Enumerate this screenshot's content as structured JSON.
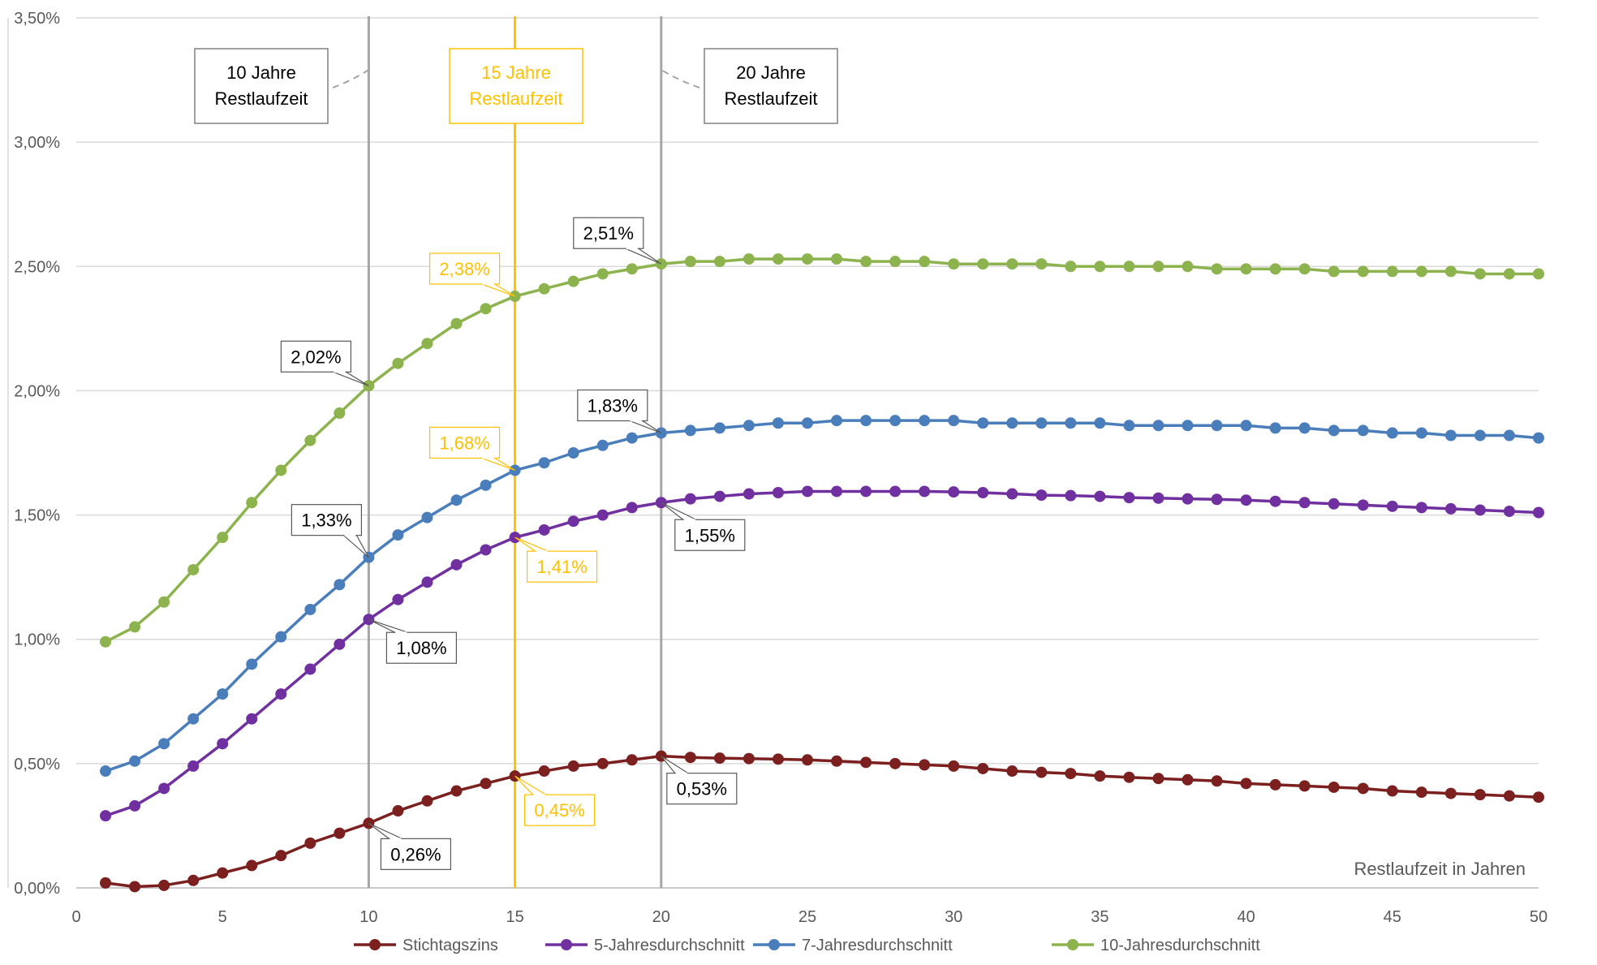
{
  "chart_data": {
    "type": "line",
    "title": "",
    "xlabel": "Restlaufzeit in Jahren",
    "ylabel": "",
    "xlim": [
      0,
      50
    ],
    "ylim": [
      0,
      3.5
    ],
    "x_ticks": [
      0,
      5,
      10,
      15,
      20,
      25,
      30,
      35,
      40,
      45,
      50
    ],
    "y_ticks": [
      "0,00%",
      "0,50%",
      "1,00%",
      "1,50%",
      "2,00%",
      "2,50%",
      "3,00%",
      "3,50%"
    ],
    "y_tick_values": [
      0,
      0.5,
      1.0,
      1.5,
      2.0,
      2.5,
      3.0,
      3.5
    ],
    "grid": "horizontal",
    "legend_position": "bottom",
    "x": [
      1,
      2,
      3,
      4,
      5,
      6,
      7,
      8,
      9,
      10,
      11,
      12,
      13,
      14,
      15,
      16,
      17,
      18,
      19,
      20,
      21,
      22,
      23,
      24,
      25,
      26,
      27,
      28,
      29,
      30,
      31,
      32,
      33,
      34,
      35,
      36,
      37,
      38,
      39,
      40,
      41,
      42,
      43,
      44,
      45,
      46,
      47,
      48,
      49,
      50
    ],
    "series": [
      {
        "name": "Stichtagszins",
        "color": "#7b1f1f",
        "values": [
          0.02,
          0.005,
          0.01,
          0.03,
          0.06,
          0.09,
          0.13,
          0.18,
          0.22,
          0.26,
          0.31,
          0.35,
          0.39,
          0.42,
          0.45,
          0.47,
          0.49,
          0.5,
          0.515,
          0.53,
          0.525,
          0.522,
          0.52,
          0.518,
          0.515,
          0.51,
          0.505,
          0.5,
          0.495,
          0.49,
          0.48,
          0.47,
          0.465,
          0.46,
          0.45,
          0.445,
          0.44,
          0.435,
          0.43,
          0.42,
          0.415,
          0.41,
          0.405,
          0.4,
          0.39,
          0.385,
          0.38,
          0.375,
          0.37,
          0.365
        ]
      },
      {
        "name": "5-Jahresdurchschnitt",
        "color": "#7030a0",
        "values": [
          0.29,
          0.33,
          0.4,
          0.49,
          0.58,
          0.68,
          0.78,
          0.88,
          0.98,
          1.08,
          1.16,
          1.23,
          1.3,
          1.36,
          1.41,
          1.44,
          1.475,
          1.5,
          1.53,
          1.55,
          1.565,
          1.575,
          1.585,
          1.59,
          1.595,
          1.595,
          1.595,
          1.595,
          1.595,
          1.593,
          1.59,
          1.585,
          1.58,
          1.578,
          1.575,
          1.57,
          1.568,
          1.565,
          1.563,
          1.56,
          1.555,
          1.55,
          1.545,
          1.54,
          1.535,
          1.53,
          1.525,
          1.52,
          1.515,
          1.51
        ]
      },
      {
        "name": "7-Jahresdurchschnitt",
        "color": "#4a7ebb",
        "values": [
          0.47,
          0.51,
          0.58,
          0.68,
          0.78,
          0.9,
          1.01,
          1.12,
          1.22,
          1.33,
          1.42,
          1.49,
          1.56,
          1.62,
          1.68,
          1.71,
          1.75,
          1.78,
          1.81,
          1.83,
          1.84,
          1.85,
          1.86,
          1.87,
          1.87,
          1.88,
          1.88,
          1.88,
          1.88,
          1.88,
          1.87,
          1.87,
          1.87,
          1.87,
          1.87,
          1.86,
          1.86,
          1.86,
          1.86,
          1.86,
          1.85,
          1.85,
          1.84,
          1.84,
          1.83,
          1.83,
          1.82,
          1.82,
          1.82,
          1.81
        ]
      },
      {
        "name": "10-Jahresdurchschnitt",
        "color": "#8db34e",
        "values": [
          0.99,
          1.05,
          1.15,
          1.28,
          1.41,
          1.55,
          1.68,
          1.8,
          1.91,
          2.02,
          2.11,
          2.19,
          2.27,
          2.33,
          2.38,
          2.41,
          2.44,
          2.47,
          2.49,
          2.51,
          2.52,
          2.52,
          2.53,
          2.53,
          2.53,
          2.53,
          2.52,
          2.52,
          2.52,
          2.51,
          2.51,
          2.51,
          2.51,
          2.5,
          2.5,
          2.5,
          2.5,
          2.5,
          2.49,
          2.49,
          2.49,
          2.49,
          2.48,
          2.48,
          2.48,
          2.48,
          2.48,
          2.47,
          2.47,
          2.47
        ]
      }
    ],
    "reference_lines": [
      {
        "x": 10,
        "label_line1": "10 Jahre",
        "label_line2": "Restlaufzeit",
        "color": "#a6a6a6"
      },
      {
        "x": 15,
        "label_line1": "15 Jahre",
        "label_line2": "Restlaufzeit",
        "color": "#ffc000"
      },
      {
        "x": 20,
        "label_line1": "20 Jahre",
        "label_line2": "Restlaufzeit",
        "color": "#a6a6a6"
      }
    ],
    "annotations": [
      {
        "x": 20,
        "series": "10-Jahresdurchschnitt",
        "text": "2,51%",
        "color": "#000000"
      },
      {
        "x": 15,
        "series": "10-Jahresdurchschnitt",
        "text": "2,38%",
        "color": "#ffc000"
      },
      {
        "x": 10,
        "series": "10-Jahresdurchschnitt",
        "text": "2,02%",
        "color": "#000000"
      },
      {
        "x": 20,
        "series": "7-Jahresdurchschnitt",
        "text": "1,83%",
        "color": "#000000"
      },
      {
        "x": 15,
        "series": "7-Jahresdurchschnitt",
        "text": "1,68%",
        "color": "#ffc000"
      },
      {
        "x": 10,
        "series": "7-Jahresdurchschnitt",
        "text": "1,33%",
        "color": "#000000"
      },
      {
        "x": 20,
        "series": "5-Jahresdurchschnitt",
        "text": "1,55%",
        "color": "#000000"
      },
      {
        "x": 15,
        "series": "5-Jahresdurchschnitt",
        "text": "1,41%",
        "color": "#ffc000"
      },
      {
        "x": 10,
        "series": "5-Jahresdurchschnitt",
        "text": "1,08%",
        "color": "#000000"
      },
      {
        "x": 20,
        "series": "Stichtagszins",
        "text": "0,53%",
        "color": "#000000"
      },
      {
        "x": 15,
        "series": "Stichtagszins",
        "text": "0,45%",
        "color": "#ffc000"
      },
      {
        "x": 10,
        "series": "Stichtagszins",
        "text": "0,26%",
        "color": "#000000"
      }
    ]
  }
}
